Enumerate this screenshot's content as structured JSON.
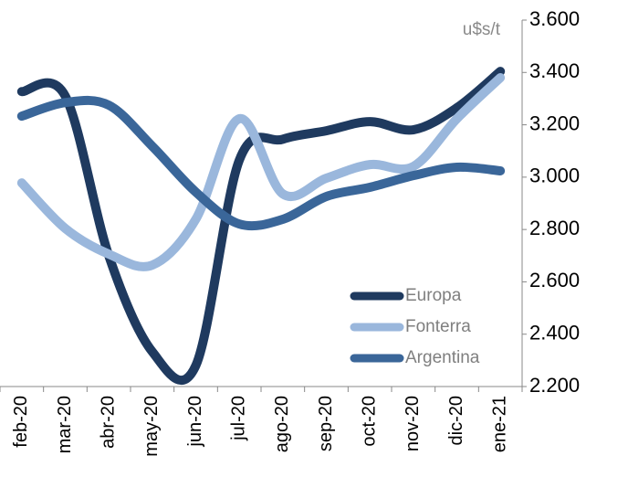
{
  "chart_data": {
    "type": "line",
    "y_axis_label": "u$s/t",
    "categories": [
      "feb-20",
      "mar-20",
      "abr-20",
      "may-20",
      "jun-20",
      "jul-20",
      "ago-20",
      "sep-20",
      "oct-20",
      "nov-20",
      "dic-20",
      "ene-21"
    ],
    "series": [
      {
        "name": "Europa",
        "color": "#1f3a5f",
        "values": [
          3327,
          3310,
          2700,
          2333,
          2280,
          3065,
          3145,
          3177,
          3212,
          3181,
          3265,
          3404
        ]
      },
      {
        "name": "Fonterra",
        "color": "#9ab7dc",
        "values": [
          2978,
          2804,
          2706,
          2664,
          2839,
          3223,
          2936,
          2996,
          3048,
          3041,
          3223,
          3380
        ]
      },
      {
        "name": "Argentina",
        "color": "#3a6699",
        "values": [
          3233,
          3285,
          3275,
          3118,
          2943,
          2821,
          2839,
          2926,
          2961,
          3006,
          3038,
          3024
        ]
      }
    ],
    "ylim": [
      2200,
      3600
    ],
    "yticks": [
      {
        "value": 2200,
        "label": "2.200"
      },
      {
        "value": 2400,
        "label": "2.400"
      },
      {
        "value": 2600,
        "label": "2.600"
      },
      {
        "value": 2800,
        "label": "2.800"
      },
      {
        "value": 3000,
        "label": "3.000"
      },
      {
        "value": 3200,
        "label": "3.200"
      },
      {
        "value": 3400,
        "label": "3.400"
      },
      {
        "value": 3600,
        "label": "3.600"
      }
    ],
    "legend": "lower right"
  }
}
